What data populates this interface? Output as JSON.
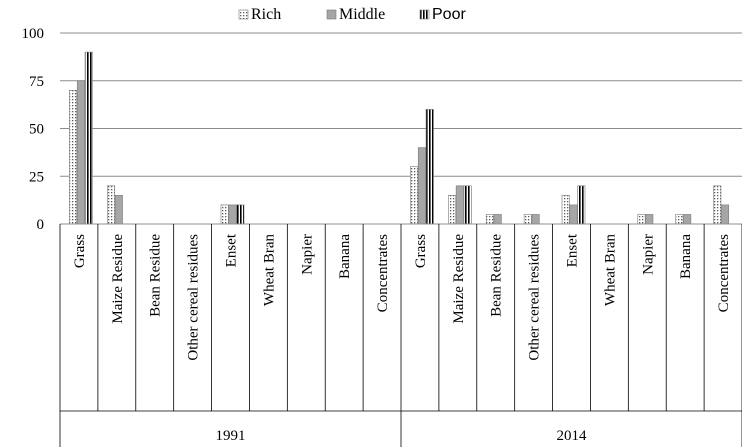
{
  "chart_data": {
    "type": "bar",
    "groups": [
      {
        "label": "1991",
        "categories": [
          "Grass",
          "Maize Residue",
          "Bean Residue",
          "Other cereal residues",
          "Enset",
          "Wheat Bran",
          "Napier",
          "Banana",
          "Concentrates"
        ],
        "series": [
          {
            "name": "Rich",
            "values": [
              70,
              20,
              0,
              0,
              10,
              0,
              0,
              0,
              0
            ]
          },
          {
            "name": "Middle",
            "values": [
              75,
              15,
              0,
              0,
              10,
              0,
              0,
              0,
              0
            ]
          },
          {
            "name": "Poor",
            "values": [
              90,
              0,
              0,
              0,
              10,
              0,
              0,
              0,
              0
            ]
          }
        ]
      },
      {
        "label": "2014",
        "categories": [
          "Grass",
          "Maize Residue",
          "Bean Residue",
          "Other cereal residues",
          "Enset",
          "Wheat Bran",
          "Napier",
          "Banana",
          "Concentrates"
        ],
        "series": [
          {
            "name": "Rich",
            "values": [
              30,
              15,
              5,
              5,
              15,
              0,
              5,
              5,
              20
            ]
          },
          {
            "name": "Middle",
            "values": [
              40,
              20,
              5,
              5,
              10,
              0,
              5,
              5,
              10
            ]
          },
          {
            "name": "Poor",
            "values": [
              60,
              20,
              0,
              0,
              20,
              0,
              0,
              0,
              0
            ]
          }
        ]
      }
    ],
    "legend": [
      "Rich",
      "Middle",
      "Poor"
    ],
    "legend_position": "top",
    "ylim": [
      0,
      100
    ],
    "yticks": [
      0,
      25,
      50,
      75,
      100
    ],
    "grid": true,
    "colors": {
      "Rich": "#ffffff",
      "Middle": "#a6a6a6",
      "Poor": "#ffffff",
      "grid": "#8c8c8c",
      "axis": "#000000"
    }
  }
}
